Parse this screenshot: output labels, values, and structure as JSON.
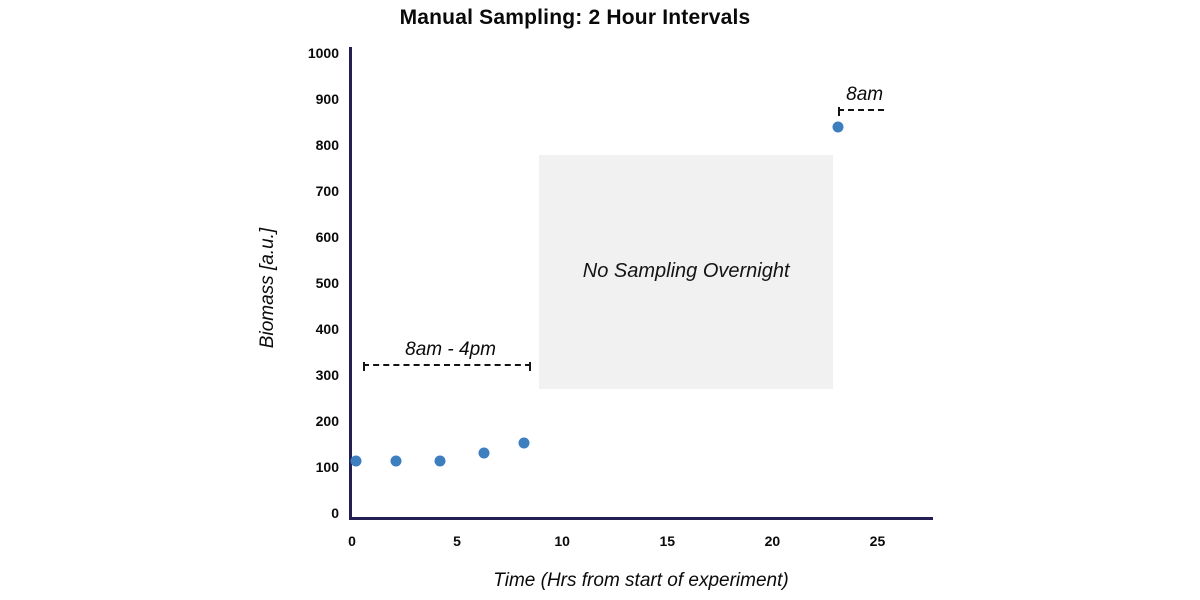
{
  "chart": {
    "title": "Manual Sampling: 2 Hour Intervals",
    "xlabel": "Time (Hrs from start of experiment)",
    "ylabel": "Biomass [a.u.]"
  },
  "chart_data": {
    "type": "scatter",
    "title": "Manual Sampling: 2 Hour Intervals",
    "xlabel": "Time (Hrs from start of experiment)",
    "ylabel": "Biomass [a.u.]",
    "points": [
      {
        "x": 0.2,
        "y": 114
      },
      {
        "x": 2.1,
        "y": 112
      },
      {
        "x": 4.2,
        "y": 112
      },
      {
        "x": 6.3,
        "y": 130
      },
      {
        "x": 8.2,
        "y": 152
      },
      {
        "x": 23.1,
        "y": 840
      }
    ],
    "x_ticks": [
      0,
      5,
      10,
      15,
      20,
      25
    ],
    "y_ticks": [
      0,
      100,
      200,
      300,
      400,
      500,
      600,
      700,
      800,
      900,
      1000
    ],
    "xlim": [
      0,
      27.5
    ],
    "ylim": [
      0,
      1010
    ],
    "grid": false,
    "legend": false,
    "colors": {
      "point": "#3d7ebf",
      "axis": "#231f54",
      "region_fill": "#f2f1f1",
      "annotation_text": "#141414"
    },
    "regions": [
      {
        "label": "No Sampling Overnight",
        "x0": 8.9,
        "x1": 22.9,
        "y0": 270,
        "y1": 778
      }
    ],
    "brackets": [
      {
        "label": "8am - 4pm",
        "x0": 0.5,
        "x1": 8.5,
        "y": 324,
        "tick_left": true,
        "tick_right": true
      },
      {
        "label": "8am",
        "x0": 23.1,
        "x1": 25.3,
        "y": 878,
        "tick_left": true,
        "tick_right": false
      }
    ]
  }
}
